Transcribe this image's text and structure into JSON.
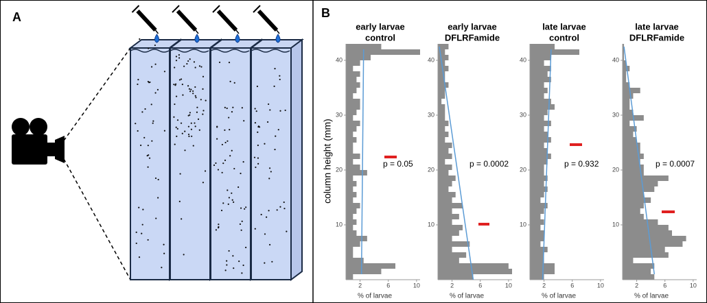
{
  "panel_labels": [
    "A",
    "B"
  ],
  "y_axis_label": "column height (mm)",
  "chart_data": [
    {
      "type": "hbar_histogram",
      "title": [
        "early larvae",
        "control"
      ],
      "xlabel": "% of larvae",
      "annotation": "p = 0.05",
      "color": "#8c8c8c",
      "trend_color": "#5b9bd5",
      "bins": [
        0,
        1,
        2,
        3,
        4,
        5,
        6,
        7,
        8,
        9,
        10,
        11,
        12,
        13,
        14,
        15,
        16,
        17,
        18,
        19,
        20,
        21,
        22,
        23,
        24,
        25,
        26,
        27,
        28,
        29,
        30,
        31,
        32,
        33,
        34,
        35,
        36,
        37,
        38,
        39,
        40,
        41,
        42,
        43
      ],
      "values": [
        1,
        5,
        7,
        2.5,
        1,
        1,
        2,
        3,
        1.5,
        1,
        1.5,
        1,
        1.5,
        2,
        1,
        1.5,
        1,
        1.5,
        1,
        3,
        2,
        1,
        2,
        1,
        1,
        1.5,
        1,
        1.5,
        2,
        1,
        1.5,
        2,
        2,
        1,
        1.5,
        2,
        1.5,
        2,
        1,
        2,
        3.5,
        10.5,
        5
      ],
      "trend": {
        "x": [
          2.2,
          2.5
        ],
        "y": [
          1,
          42
        ]
      },
      "xlim": [
        0,
        10.5
      ],
      "xticks": [
        2,
        6,
        10
      ],
      "ylim": [
        0,
        43
      ],
      "yticks": [
        10,
        20,
        30,
        40
      ]
    },
    {
      "type": "hbar_histogram",
      "title": [
        "early larvae",
        "DFLRFamide"
      ],
      "xlabel": "% of larvae",
      "annotation": "p = 0.0002",
      "color": "#8c8c8c",
      "trend_color": "#5b9bd5",
      "bins": [
        0,
        1,
        2,
        3,
        4,
        5,
        6,
        7,
        8,
        9,
        10,
        11,
        12,
        13,
        14,
        15,
        16,
        17,
        18,
        19,
        20,
        21,
        22,
        23,
        24,
        25,
        26,
        27,
        28,
        29,
        30,
        31,
        32,
        33,
        34,
        35,
        36,
        37,
        38,
        39,
        40,
        41,
        42,
        43
      ],
      "values": [
        5,
        10.5,
        10,
        3,
        4,
        2,
        4.5,
        2,
        3,
        3.5,
        2,
        3,
        2,
        3.5,
        2,
        2.5,
        1.5,
        2,
        2.5,
        1.5,
        2,
        1,
        2,
        1.5,
        2,
        1,
        1.5,
        1,
        1.5,
        1,
        1,
        1,
        0.5,
        1,
        1,
        1.5,
        1,
        1,
        1.5,
        1,
        1.5,
        1,
        1.5
      ],
      "trend": {
        "x": [
          5,
          0.2
        ],
        "y": [
          0,
          42.5
        ]
      },
      "xlim": [
        0,
        10.5
      ],
      "xticks": [
        2,
        6,
        10
      ],
      "ylim": [
        0,
        43
      ],
      "yticks": [
        10,
        20,
        30,
        40
      ]
    },
    {
      "type": "hbar_histogram",
      "title": [
        "late larvae",
        "control"
      ],
      "xlabel": "% of larvae",
      "annotation": "p = 0.932",
      "color": "#8c8c8c",
      "trend_color": "#5b9bd5",
      "bins": [
        0,
        1,
        2,
        3,
        4,
        5,
        6,
        7,
        8,
        9,
        10,
        11,
        12,
        13,
        14,
        15,
        16,
        17,
        18,
        19,
        20,
        21,
        22,
        23,
        24,
        25,
        26,
        27,
        28,
        29,
        30,
        31,
        32,
        33,
        34,
        35,
        36,
        37,
        38,
        39,
        40,
        41,
        42,
        43
      ],
      "values": [
        2,
        3.5,
        3.5,
        2,
        2,
        2.5,
        1.5,
        2,
        2,
        1.5,
        2,
        1.5,
        2,
        2.5,
        1.5,
        2,
        2.5,
        2,
        2.5,
        2,
        2,
        2.5,
        3,
        2.5,
        2,
        3,
        2.5,
        2,
        3,
        2,
        2.5,
        3.5,
        3,
        2,
        2.5,
        2,
        3,
        2.5,
        3,
        2,
        3,
        7,
        3.5
      ],
      "trend": {
        "x": [
          1.8,
          3
        ],
        "y": [
          0,
          42
        ]
      },
      "xlim": [
        0,
        10.5
      ],
      "xticks": [
        2,
        6,
        10
      ],
      "ylim": [
        0,
        43
      ],
      "yticks": [
        10,
        20,
        30,
        40
      ]
    },
    {
      "type": "hbar_histogram",
      "title": [
        "late larvae",
        "DFLRFamide"
      ],
      "xlabel": "% of larvae",
      "annotation": "p = 0.0007",
      "color": "#8c8c8c",
      "trend_color": "#5b9bd5",
      "bins": [
        0,
        1,
        2,
        3,
        4,
        5,
        6,
        7,
        8,
        9,
        10,
        11,
        12,
        13,
        14,
        15,
        16,
        17,
        18,
        19,
        20,
        21,
        22,
        23,
        24,
        25,
        26,
        27,
        28,
        29,
        30,
        31,
        32,
        33,
        34,
        35,
        36,
        37,
        38,
        39,
        40,
        41,
        42,
        43
      ],
      "values": [
        4.5,
        4,
        4.5,
        1.5,
        6.5,
        6,
        8.5,
        9,
        7,
        6.5,
        5,
        3,
        2.5,
        3,
        4,
        3,
        4.5,
        5,
        6.5,
        3,
        3,
        2.5,
        3,
        2.5,
        2.5,
        2,
        1.5,
        2,
        1,
        3,
        1.5,
        1,
        1,
        1.5,
        2.5,
        1,
        0.5,
        0.5,
        1,
        0.5,
        0.2,
        0.2,
        0.2
      ],
      "trend": {
        "x": [
          4.5,
          0.2
        ],
        "y": [
          1,
          42.5
        ]
      },
      "xlim": [
        0,
        10.5
      ],
      "xticks": [
        2,
        6,
        10
      ],
      "ylim": [
        0,
        43
      ],
      "yticks": [
        10,
        20,
        30,
        40
      ]
    }
  ]
}
